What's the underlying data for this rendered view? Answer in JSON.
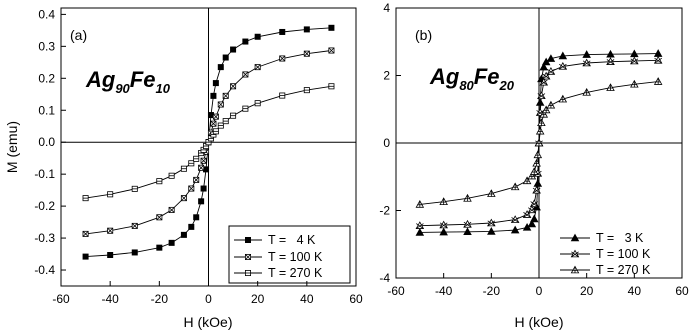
{
  "chart_data": [
    {
      "type": "line",
      "panel_label": "(a)",
      "annotation": {
        "base1": "Ag",
        "sub1": "90",
        "base2": "Fe",
        "sub2": "10"
      },
      "xlabel": "H (kOe)",
      "ylabel": "M (emu)",
      "xlim": [
        -60,
        60
      ],
      "ylim": [
        -0.45,
        0.42
      ],
      "xticks": [
        "-60",
        "-40",
        "-20",
        "0",
        "20",
        "40",
        "60"
      ],
      "yticks": [
        "-0.4",
        "-0.3",
        "-0.2",
        "-0.1",
        "0.0",
        "0.1",
        "0.2",
        "0.3",
        "0.4"
      ],
      "zero_lines": true,
      "legend_position": "lower-right",
      "series": [
        {
          "name": "T =   4 K",
          "marker": "filled-square",
          "x": [
            -50,
            -40,
            -30,
            -20,
            -15,
            -10,
            -7,
            -5,
            -3,
            -2,
            -1,
            0,
            1,
            2,
            3,
            5,
            7,
            10,
            15,
            20,
            30,
            40,
            50
          ],
          "y": [
            -0.358,
            -0.353,
            -0.345,
            -0.33,
            -0.315,
            -0.29,
            -0.265,
            -0.235,
            -0.185,
            -0.145,
            -0.085,
            0.0,
            0.085,
            0.145,
            0.185,
            0.235,
            0.265,
            0.29,
            0.315,
            0.33,
            0.345,
            0.353,
            0.358
          ]
        },
        {
          "name": "T = 100 K",
          "marker": "crossed-square",
          "x": [
            -50,
            -40,
            -30,
            -20,
            -15,
            -10,
            -7,
            -5,
            -3,
            -2,
            -1,
            0,
            1,
            2,
            3,
            5,
            7,
            10,
            15,
            20,
            30,
            40,
            50
          ],
          "y": [
            -0.287,
            -0.277,
            -0.262,
            -0.235,
            -0.212,
            -0.175,
            -0.145,
            -0.118,
            -0.08,
            -0.058,
            -0.03,
            0.0,
            0.03,
            0.058,
            0.08,
            0.118,
            0.145,
            0.175,
            0.212,
            0.235,
            0.262,
            0.277,
            0.287
          ]
        },
        {
          "name": "T = 270 K",
          "marker": "open-square",
          "x": [
            -50,
            -40,
            -30,
            -20,
            -15,
            -10,
            -7,
            -5,
            -3,
            -2,
            -1,
            0,
            1,
            2,
            3,
            5,
            7,
            10,
            15,
            20,
            30,
            40,
            50
          ],
          "y": [
            -0.175,
            -0.163,
            -0.146,
            -0.122,
            -0.105,
            -0.083,
            -0.066,
            -0.052,
            -0.034,
            -0.024,
            -0.012,
            0.0,
            0.012,
            0.024,
            0.034,
            0.052,
            0.066,
            0.083,
            0.105,
            0.122,
            0.146,
            0.163,
            0.175
          ]
        }
      ]
    },
    {
      "type": "line",
      "panel_label": "(b)",
      "annotation": {
        "base1": "Ag",
        "sub1": "80",
        "base2": "Fe",
        "sub2": "20"
      },
      "xlabel": "H (kOe)",
      "ylabel": "",
      "xlim": [
        -60,
        60
      ],
      "ylim": [
        -4,
        4
      ],
      "xticks": [
        "-60",
        "-40",
        "-20",
        "0",
        "20",
        "40",
        "60"
      ],
      "yticks": [
        "-4",
        "-2",
        "0",
        "2",
        "4"
      ],
      "zero_lines": true,
      "legend_position": "lower-right",
      "series": [
        {
          "name": "T =   3 K",
          "marker": "filled-triangle",
          "x": [
            -50,
            -40,
            -30,
            -20,
            -10,
            -5,
            -3,
            -2,
            -1,
            -0.5,
            0,
            0.5,
            1,
            2,
            3,
            5,
            10,
            20,
            30,
            40,
            50
          ],
          "y": [
            -2.65,
            -2.64,
            -2.63,
            -2.62,
            -2.58,
            -2.5,
            -2.4,
            -2.25,
            -1.9,
            -1.2,
            0.0,
            1.2,
            1.9,
            2.25,
            2.4,
            2.5,
            2.58,
            2.62,
            2.63,
            2.64,
            2.65
          ]
        },
        {
          "name": "T = 100 K",
          "marker": "x-triangle",
          "x": [
            -50,
            -40,
            -30,
            -20,
            -10,
            -5,
            -3,
            -2,
            -1,
            -0.5,
            0,
            0.5,
            1,
            2,
            3,
            5,
            10,
            20,
            30,
            40,
            50
          ],
          "y": [
            -2.45,
            -2.43,
            -2.41,
            -2.37,
            -2.27,
            -2.12,
            -1.98,
            -1.8,
            -1.4,
            -0.9,
            0.0,
            0.9,
            1.4,
            1.8,
            1.98,
            2.12,
            2.27,
            2.37,
            2.41,
            2.43,
            2.45
          ]
        },
        {
          "name": "T = 270 K",
          "marker": "plus-triangle",
          "x": [
            -50,
            -40,
            -30,
            -20,
            -10,
            -5,
            -3,
            -2,
            -1,
            -0.5,
            0,
            0.5,
            1,
            2,
            3,
            5,
            10,
            20,
            30,
            40,
            50
          ],
          "y": [
            -1.82,
            -1.74,
            -1.64,
            -1.5,
            -1.3,
            -1.12,
            -0.98,
            -0.85,
            -0.6,
            -0.35,
            0.0,
            0.35,
            0.6,
            0.85,
            0.98,
            1.12,
            1.3,
            1.5,
            1.64,
            1.74,
            1.82
          ]
        }
      ]
    }
  ]
}
